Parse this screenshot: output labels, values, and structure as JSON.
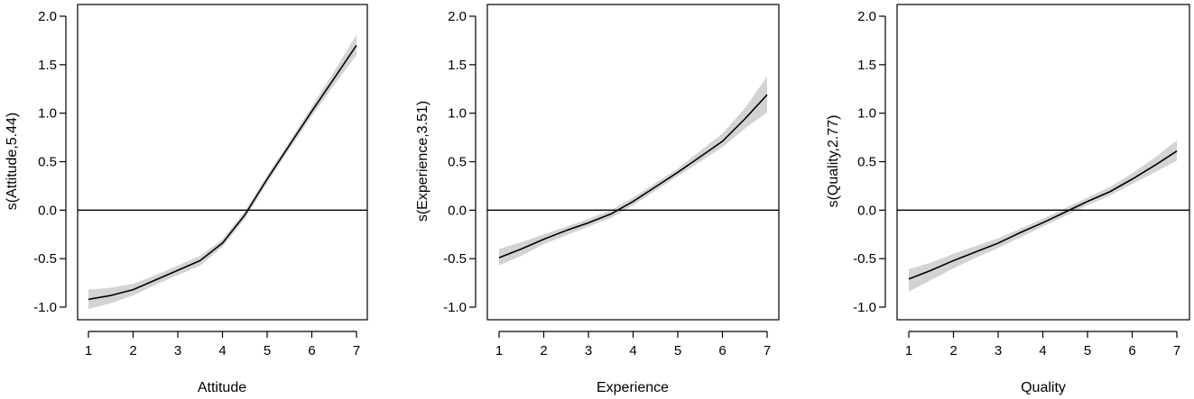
{
  "chart_data": [
    {
      "type": "line",
      "ylabel": "s(Attitude,5.44)",
      "xlabel": "Attitude",
      "xlim": [
        1,
        7
      ],
      "ylim": [
        -1.0,
        2.0
      ],
      "xticks": [
        "1",
        "2",
        "3",
        "4",
        "5",
        "6",
        "7"
      ],
      "yticks": [
        "-1.0",
        "-0.5",
        "0.0",
        "0.5",
        "1.0",
        "1.5",
        "2.0"
      ],
      "reference_line_y": 0,
      "x": [
        1,
        1.5,
        2,
        2.5,
        3,
        3.5,
        4,
        4.5,
        5,
        5.5,
        6,
        6.5,
        7
      ],
      "fit": [
        -0.92,
        -0.88,
        -0.82,
        -0.72,
        -0.62,
        -0.52,
        -0.34,
        -0.05,
        0.32,
        0.67,
        1.02,
        1.36,
        1.7
      ],
      "lower": [
        -1.02,
        -0.96,
        -0.88,
        -0.77,
        -0.67,
        -0.57,
        -0.38,
        -0.09,
        0.28,
        0.63,
        0.97,
        1.29,
        1.6
      ],
      "upper": [
        -0.82,
        -0.8,
        -0.76,
        -0.67,
        -0.57,
        -0.47,
        -0.3,
        -0.01,
        0.36,
        0.71,
        1.07,
        1.43,
        1.81
      ]
    },
    {
      "type": "line",
      "ylabel": "s(Experience,3.51)",
      "xlabel": "Experience",
      "xlim": [
        1,
        7
      ],
      "ylim": [
        -1.0,
        2.0
      ],
      "xticks": [
        "1",
        "2",
        "3",
        "4",
        "5",
        "6",
        "7"
      ],
      "yticks": [
        "-1.0",
        "-0.5",
        "0.0",
        "0.5",
        "1.0",
        "1.5",
        "2.0"
      ],
      "reference_line_y": 0,
      "x": [
        1,
        1.5,
        2,
        2.5,
        3,
        3.5,
        4,
        4.5,
        5,
        5.5,
        6,
        6.5,
        7
      ],
      "fit": [
        -0.49,
        -0.4,
        -0.3,
        -0.21,
        -0.13,
        -0.04,
        0.09,
        0.24,
        0.39,
        0.55,
        0.71,
        0.94,
        1.19
      ],
      "lower": [
        -0.57,
        -0.47,
        -0.35,
        -0.26,
        -0.17,
        -0.08,
        0.05,
        0.2,
        0.35,
        0.5,
        0.65,
        0.84,
        1.01
      ],
      "upper": [
        -0.4,
        -0.33,
        -0.25,
        -0.17,
        -0.09,
        0.0,
        0.13,
        0.28,
        0.43,
        0.61,
        0.79,
        1.05,
        1.38
      ]
    },
    {
      "type": "line",
      "ylabel": "s(Quality,2.77)",
      "xlabel": "Quality",
      "xlim": [
        1,
        7
      ],
      "ylim": [
        -1.0,
        2.0
      ],
      "xticks": [
        "1",
        "2",
        "3",
        "4",
        "5",
        "6",
        "7"
      ],
      "yticks": [
        "-1.0",
        "-0.5",
        "0.0",
        "0.5",
        "1.0",
        "1.5",
        "2.0"
      ],
      "reference_line_y": 0,
      "x": [
        1,
        1.5,
        2,
        2.5,
        3,
        3.5,
        4,
        4.5,
        5,
        5.5,
        6,
        6.5,
        7
      ],
      "fit": [
        -0.71,
        -0.62,
        -0.52,
        -0.43,
        -0.34,
        -0.23,
        -0.13,
        -0.02,
        0.09,
        0.19,
        0.32,
        0.46,
        0.61
      ],
      "lower": [
        -0.84,
        -0.72,
        -0.6,
        -0.49,
        -0.39,
        -0.28,
        -0.17,
        -0.06,
        0.05,
        0.15,
        0.27,
        0.39,
        0.51
      ],
      "upper": [
        -0.61,
        -0.54,
        -0.45,
        -0.37,
        -0.29,
        -0.19,
        -0.09,
        0.02,
        0.13,
        0.24,
        0.38,
        0.54,
        0.72
      ]
    }
  ]
}
